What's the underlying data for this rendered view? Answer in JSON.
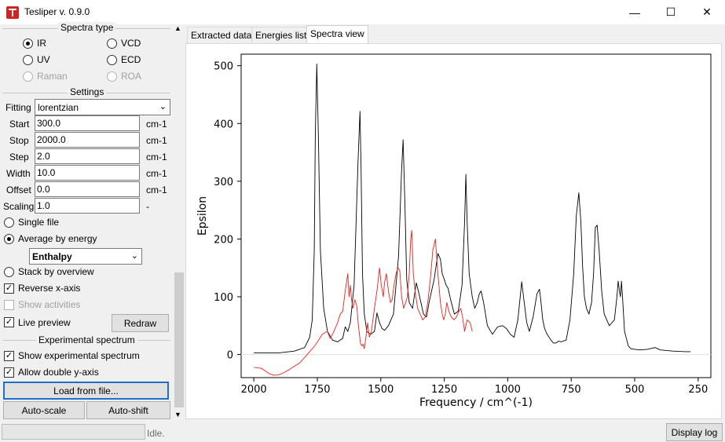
{
  "window": {
    "title": "Tesliper v. 0.9.0",
    "minimize": "—",
    "maximize": "☐",
    "close": "✕"
  },
  "spectra_type": {
    "title": "Spectra type",
    "options": [
      {
        "label": "IR",
        "selected": true,
        "enabled": true
      },
      {
        "label": "VCD",
        "selected": false,
        "enabled": true
      },
      {
        "label": "UV",
        "selected": false,
        "enabled": true
      },
      {
        "label": "ECD",
        "selected": false,
        "enabled": true
      },
      {
        "label": "Raman",
        "selected": false,
        "enabled": false
      },
      {
        "label": "ROA",
        "selected": false,
        "enabled": false
      }
    ]
  },
  "settings": {
    "title": "Settings",
    "fitting_label": "Fitting",
    "fitting_value": "lorentzian",
    "rows": [
      {
        "label": "Start",
        "value": "300.0",
        "unit": "cm-1"
      },
      {
        "label": "Stop",
        "value": "2000.0",
        "unit": "cm-1"
      },
      {
        "label": "Step",
        "value": "2.0",
        "unit": "cm-1"
      },
      {
        "label": "Width",
        "value": "10.0",
        "unit": "cm-1"
      },
      {
        "label": "Offset",
        "value": "0.0",
        "unit": "cm-1"
      },
      {
        "label": "Scaling",
        "value": "1.0",
        "unit": "-"
      }
    ],
    "single_file": "Single file",
    "average_by_energy": "Average by energy",
    "energy_type": "Enthalpy",
    "stack_by_overview": "Stack by overview",
    "reverse_x_axis": "Reverse x-axis",
    "show_activities": "Show activities",
    "live_preview": "Live preview",
    "redraw": "Redraw"
  },
  "experimental": {
    "title": "Experimental spectrum",
    "show_experimental": "Show experimental spectrum",
    "allow_double_y": "Allow double y-axis",
    "load_from_file": "Load from file...",
    "auto_scale": "Auto-scale",
    "auto_shift": "Auto-shift"
  },
  "tabs": [
    "Extracted data",
    "Energies list",
    "Spectra view"
  ],
  "active_tab": "Spectra view",
  "status": {
    "text": "Idle.",
    "display_log": "Display log"
  },
  "chart_data": {
    "type": "line",
    "xlabel": "Frequency / cm^(-1)",
    "ylabel": "Epsilon",
    "xlim": [
      2050,
      200
    ],
    "ylim": [
      -40,
      520
    ],
    "x_reversed": true,
    "xticks": [
      2000,
      1750,
      1500,
      1250,
      1000,
      750,
      500,
      250
    ],
    "yticks": [
      0,
      100,
      200,
      300,
      400,
      500
    ],
    "zero_line": true,
    "series": [
      {
        "color": "#000000",
        "x": [
          2000,
          1900,
          1840,
          1800,
          1780,
          1770,
          1762,
          1758,
          1752,
          1746,
          1738,
          1725,
          1710,
          1690,
          1670,
          1650,
          1640,
          1630,
          1620,
          1605,
          1590,
          1582,
          1578,
          1572,
          1565,
          1555,
          1540,
          1525,
          1515,
          1505,
          1495,
          1485,
          1470,
          1450,
          1430,
          1418,
          1412,
          1405,
          1398,
          1388,
          1375,
          1360,
          1352,
          1342,
          1332,
          1320,
          1310,
          1290,
          1275,
          1265,
          1258,
          1250,
          1243,
          1235,
          1225,
          1210,
          1195,
          1180,
          1170,
          1165,
          1160,
          1152,
          1140,
          1130,
          1120,
          1112,
          1105,
          1095,
          1080,
          1060,
          1040,
          1020,
          1005,
          990,
          975,
          960,
          945,
          935,
          925,
          915,
          900,
          885,
          875,
          870,
          862,
          855,
          845,
          830,
          820,
          810,
          800,
          790,
          770,
          755,
          740,
          730,
          720,
          712,
          705,
          698,
          690,
          680,
          670,
          662,
          655,
          648,
          640,
          630,
          620,
          600,
          580,
          570,
          565,
          560,
          556,
          552,
          548,
          540,
          525,
          515,
          500,
          480,
          450,
          420,
          400,
          350,
          300,
          280
        ],
        "y": [
          3,
          3,
          6,
          12,
          30,
          60,
          180,
          380,
          503,
          380,
          180,
          80,
          40,
          25,
          22,
          28,
          48,
          40,
          55,
          120,
          330,
          421,
          330,
          140,
          70,
          40,
          35,
          40,
          72,
          55,
          45,
          42,
          50,
          70,
          170,
          320,
          372,
          260,
          130,
          90,
          80,
          124,
          110,
          90,
          70,
          65,
          90,
          130,
          175,
          165,
          140,
          130,
          120,
          115,
          95,
          70,
          75,
          120,
          230,
          312,
          230,
          140,
          100,
          80,
          90,
          105,
          110,
          90,
          50,
          35,
          48,
          50,
          45,
          35,
          30,
          60,
          126,
          90,
          55,
          40,
          65,
          105,
          113,
          95,
          60,
          45,
          35,
          25,
          20,
          20,
          23,
          22,
          25,
          60,
          140,
          240,
          280,
          230,
          150,
          100,
          80,
          70,
          90,
          140,
          220,
          224,
          180,
          110,
          70,
          50,
          60,
          100,
          127,
          110,
          100,
          127,
          100,
          40,
          15,
          10,
          9,
          8,
          9,
          12,
          8,
          6,
          5,
          5
        ]
      },
      {
        "color": "#e8231e",
        "x": [
          2000,
          1970,
          1940,
          1920,
          1900,
          1880,
          1860,
          1840,
          1820,
          1800,
          1780,
          1760,
          1745,
          1730,
          1720,
          1710,
          1700,
          1690,
          1680,
          1670,
          1660,
          1650,
          1640,
          1630,
          1625,
          1620,
          1615,
          1610,
          1602,
          1595,
          1588,
          1580,
          1575,
          1570,
          1565,
          1560,
          1552,
          1545,
          1537,
          1525,
          1515,
          1505,
          1498,
          1490,
          1485,
          1478,
          1470,
          1462,
          1455,
          1448,
          1440,
          1432,
          1425,
          1418,
          1410,
          1402,
          1395,
          1388,
          1382,
          1378,
          1372,
          1365,
          1355,
          1345,
          1335,
          1325,
          1315,
          1305,
          1295,
          1285,
          1275,
          1265,
          1258,
          1252,
          1246,
          1240,
          1232,
          1222,
          1212,
          1202,
          1192,
          1185,
          1178,
          1170,
          1160,
          1148,
          1140
        ],
        "y": [
          -22,
          -24,
          -33,
          -36,
          -35,
          -31,
          -26,
          -20,
          -15,
          -5,
          5,
          15,
          25,
          35,
          38,
          40,
          28,
          35,
          45,
          55,
          70,
          75,
          110,
          140,
          100,
          120,
          95,
          80,
          95,
          85,
          50,
          20,
          15,
          18,
          10,
          25,
          55,
          30,
          40,
          80,
          110,
          150,
          120,
          100,
          125,
          140,
          110,
          90,
          95,
          120,
          140,
          150,
          145,
          100,
          80,
          90,
          100,
          140,
          200,
          215,
          140,
          110,
          80,
          70,
          60,
          65,
          90,
          130,
          180,
          200,
          140,
          90,
          70,
          60,
          70,
          90,
          75,
          65,
          60,
          65,
          75,
          80,
          65,
          40,
          60,
          55,
          40
        ]
      }
    ]
  }
}
